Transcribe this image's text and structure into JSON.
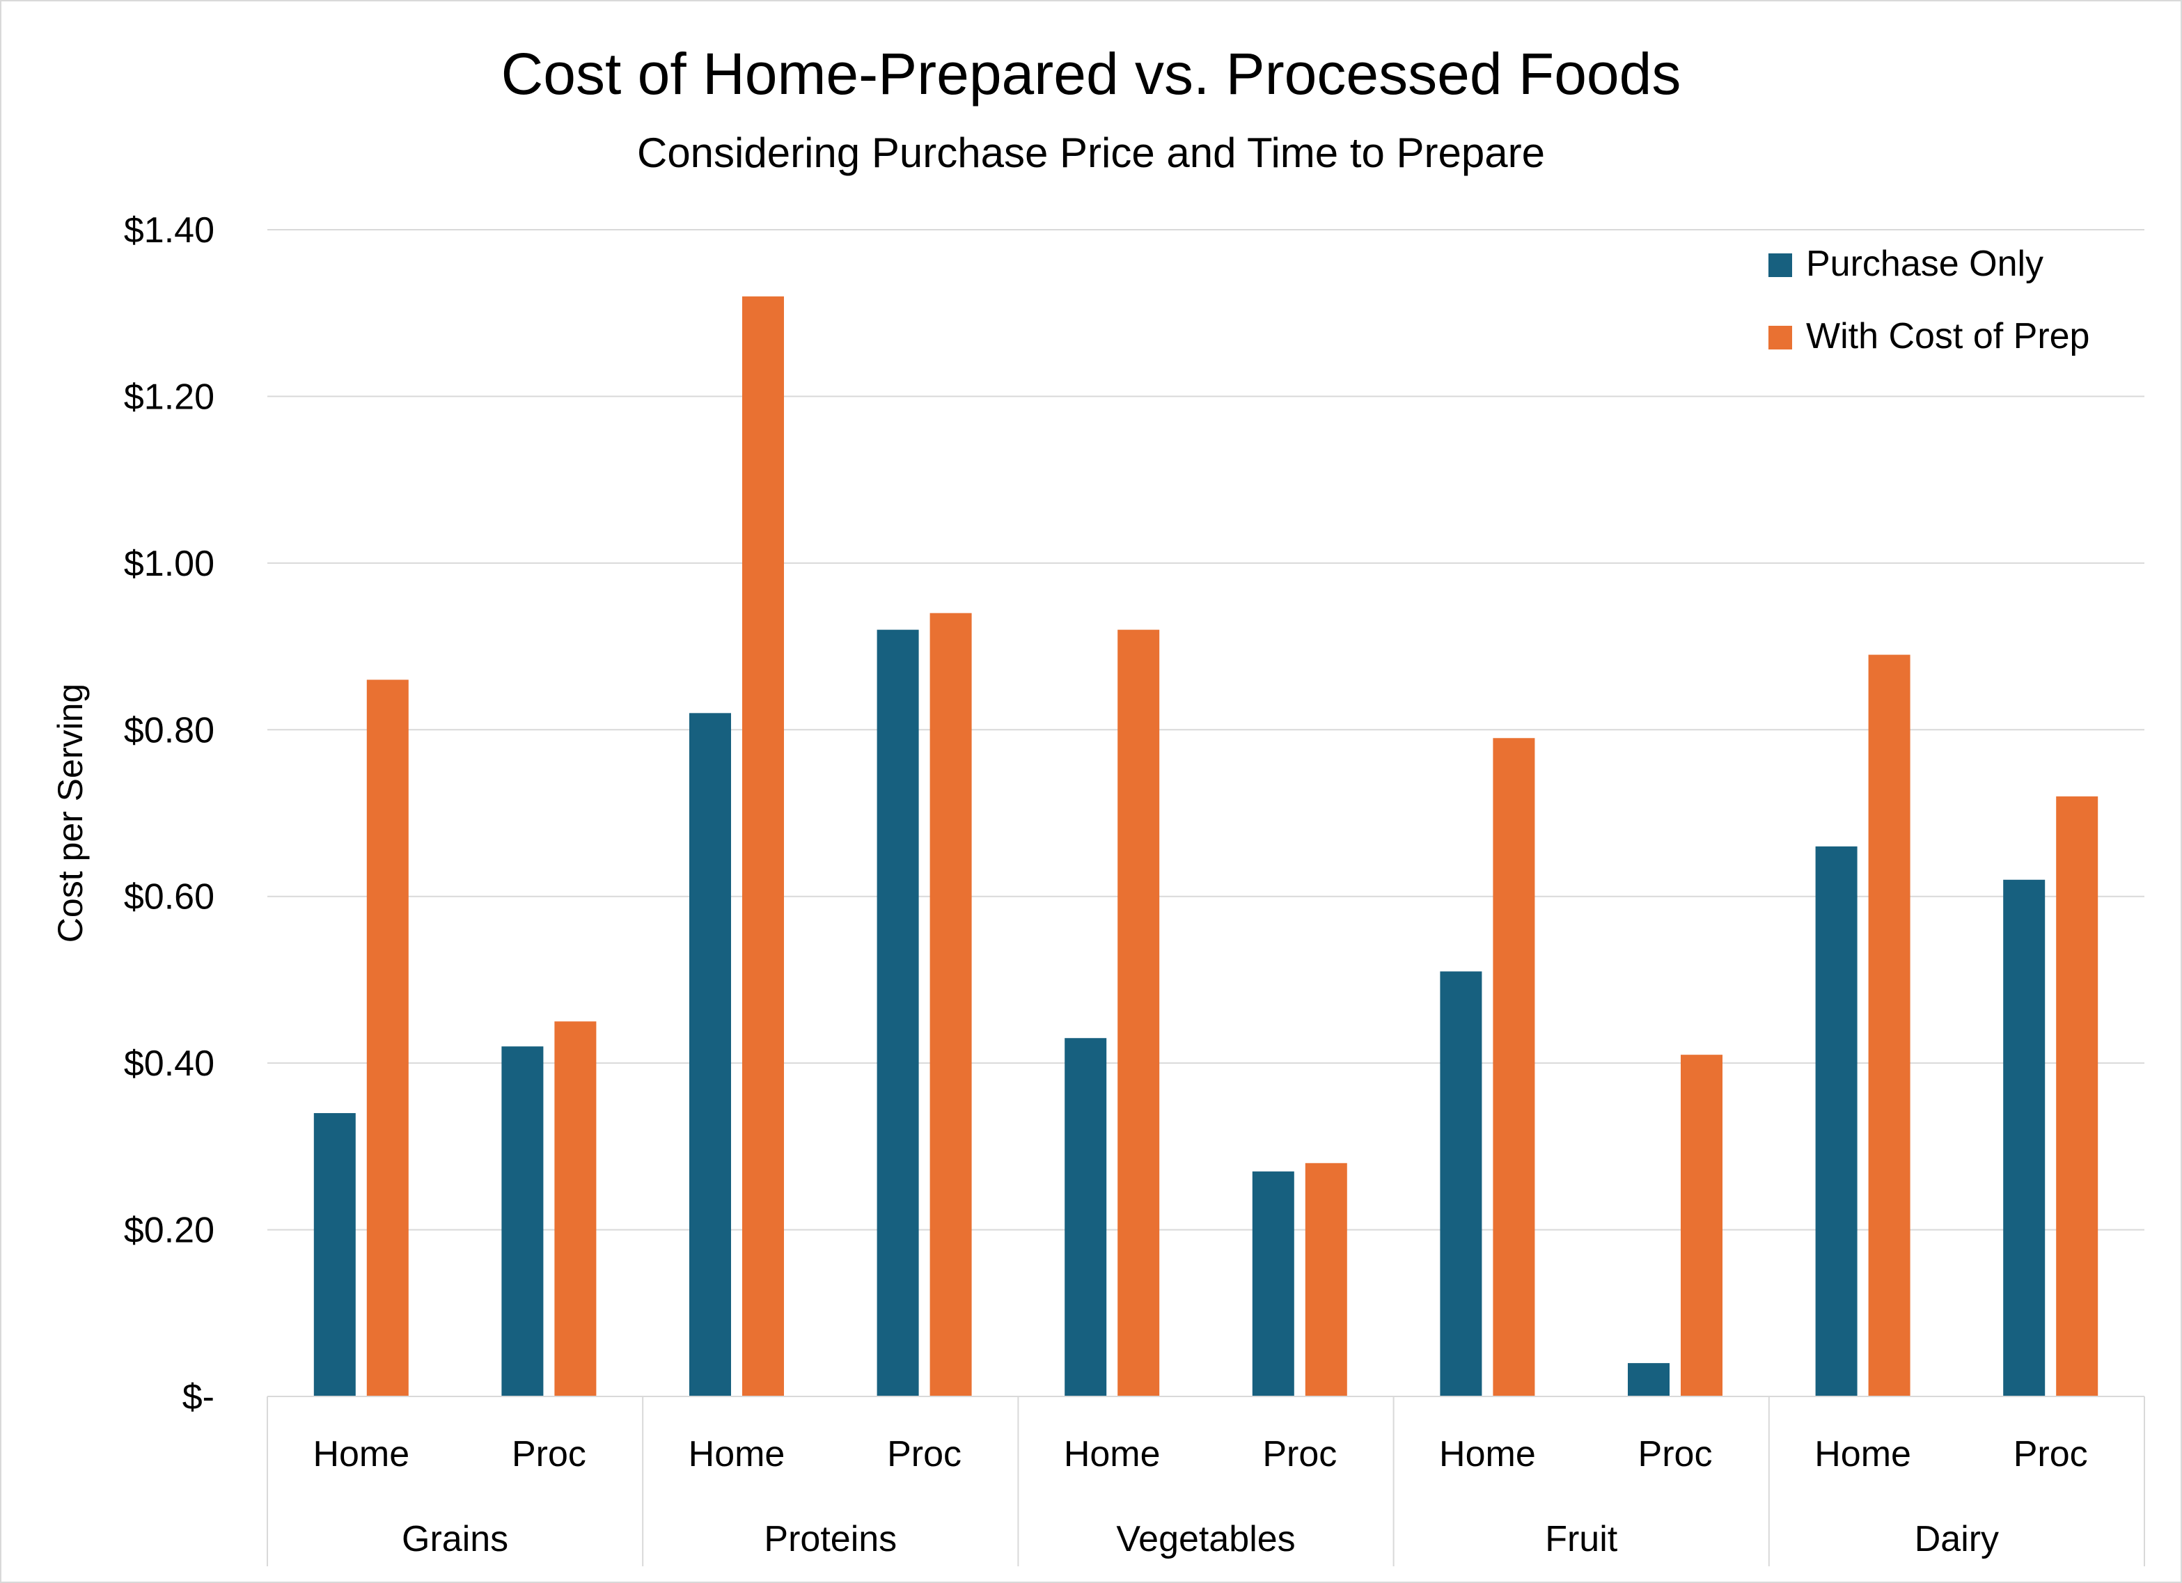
{
  "chart_data": {
    "type": "bar",
    "title": "Cost of Home-Prepared vs. Processed Foods",
    "subtitle": "Considering Purchase Price and Time to Prepare",
    "ylabel": "Cost per Serving",
    "ylim": [
      0,
      1.4
    ],
    "yticks": [
      {
        "value": 0,
        "label": "$-"
      },
      {
        "value": 0.2,
        "label": "$0.20"
      },
      {
        "value": 0.4,
        "label": "$0.40"
      },
      {
        "value": 0.6,
        "label": "$0.60"
      },
      {
        "value": 0.8,
        "label": "$0.80"
      },
      {
        "value": 1.0,
        "label": "$1.00"
      },
      {
        "value": 1.2,
        "label": "$1.20"
      },
      {
        "value": 1.4,
        "label": "$1.40"
      }
    ],
    "grid": true,
    "legend_position": "top-right",
    "groups": [
      "Grains",
      "Proteins",
      "Vegetables",
      "Fruit",
      "Dairy"
    ],
    "categories": [
      "Home",
      "Proc",
      "Home",
      "Proc",
      "Home",
      "Proc",
      "Home",
      "Proc",
      "Home",
      "Proc"
    ],
    "series": [
      {
        "name": "Purchase Only",
        "color": "#17607f",
        "values": [
          0.34,
          0.42,
          0.82,
          0.92,
          0.43,
          0.27,
          0.51,
          0.04,
          0.66,
          0.62
        ]
      },
      {
        "name": "With Cost of Prep",
        "color": "#e97132",
        "values": [
          0.86,
          0.45,
          1.32,
          0.94,
          0.92,
          0.28,
          0.79,
          0.41,
          0.89,
          0.72
        ]
      }
    ]
  }
}
